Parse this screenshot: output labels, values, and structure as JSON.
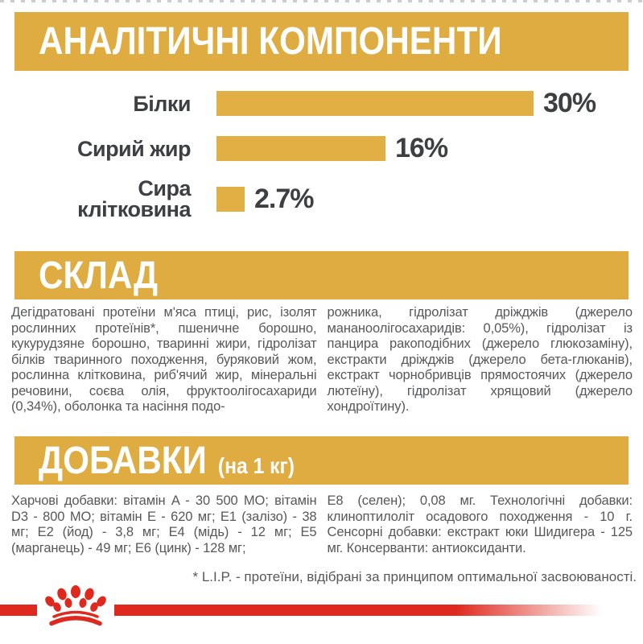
{
  "sections": {
    "analytical": {
      "title": "АНАЛІТИЧНІ КОМПОНЕНТИ"
    },
    "composition": {
      "title": "СКЛАД",
      "col_left": "Дегідратовані протеїни м'яса птиці, рис, ізолят рослинних протеїнів*, пшеничне борошно, кукурудзяне борошно, тваринні жири, гідролізат білків тваринного походження, буряковий жом, рослинна клітковина, риб'ячий жир, мінеральні речовини, соєва олія, фруктоолігосахариди (0,34%), оболонка та насіння подо-",
      "col_right": "рожника, гідролізат дріжджів (джерело мананоолігосахаридів: 0,05%), гідролізат із панцира ракоподібних (джерело глюкозаміну), екстракти дріжджів (джерело бета-глюканів), екстракт чорнобривців прямостоячих (джерело лютеїну), гідролізат хрящовий (джерело хондроїтину)."
    },
    "additives": {
      "title": "ДОБАВКИ",
      "title_suffix": "(на 1 кг)",
      "col_left": "Харчові добавки: вітамін A - 30 500 МО; вітамін D3 - 800 МО; вітамін E - 620 мг; E1 (залізо) - 38 мг; E2 (йод) - 3,8 мг; E4 (мідь) - 12 мг; E5 (марганець) - 49 мг; E6 (цинк) - 128 мг;",
      "col_right": "E8 (селен); 0,08 мг. Технологічні добавки: клиноптилоліт осадового походження - 10 г. Сенсорні добавки: екстракт юки Шидигера - 125 мг. Консерванти: антиоксиданти."
    },
    "footnote": "* L.I.P. - протеїни, відібрані за принципом оптимальної засвоюваності."
  },
  "chart_data": {
    "type": "bar",
    "orientation": "horizontal",
    "title": "АНАЛІТИЧНІ КОМПОНЕНТИ",
    "categories": [
      "Білки",
      "Сирий жир",
      "Сира клітковина"
    ],
    "category_lines": [
      [
        "Білки"
      ],
      [
        "Сирий жир"
      ],
      [
        "Сира",
        "клітковина"
      ]
    ],
    "values": [
      30,
      16,
      2.7
    ],
    "labels": [
      "30%",
      "16%",
      "2.7%"
    ],
    "unit": "%",
    "xlim": [
      0,
      30
    ],
    "grid": false,
    "legend": "none",
    "bar_color": "#E2AF45"
  },
  "logo": {
    "name": "royal-canin-crown",
    "style": "red crown of dots above two curved bands"
  },
  "colors": {
    "gold": "#DFAC42",
    "dark_text": "#3E3F42",
    "body_text": "#57585A",
    "red": "#E0291E"
  }
}
